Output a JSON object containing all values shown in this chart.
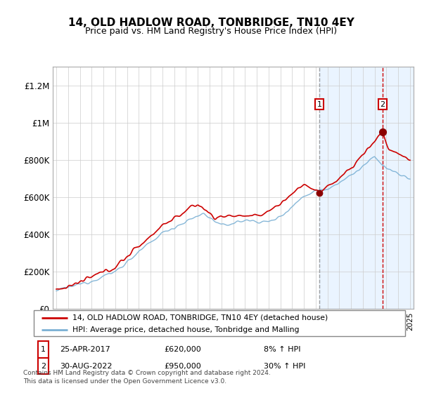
{
  "title": "14, OLD HADLOW ROAD, TONBRIDGE, TN10 4EY",
  "subtitle": "Price paid vs. HM Land Registry's House Price Index (HPI)",
  "legend_line1": "14, OLD HADLOW ROAD, TONBRIDGE, TN10 4EY (detached house)",
  "legend_line2": "HPI: Average price, detached house, Tonbridge and Malling",
  "annotation1_date": "25-APR-2017",
  "annotation1_price": 620000,
  "annotation1_text": "8% ↑ HPI",
  "annotation1_year": 2017.32,
  "annotation2_date": "30-AUG-2022",
  "annotation2_price": 950000,
  "annotation2_text": "30% ↑ HPI",
  "annotation2_year": 2022.67,
  "footer": "Contains HM Land Registry data © Crown copyright and database right 2024.\nThis data is licensed under the Open Government Licence v3.0.",
  "red_color": "#cc0000",
  "blue_color": "#7ab0d4",
  "shading_color": "#ddeeff",
  "ylim": [
    0,
    1300000
  ],
  "yticks": [
    0,
    200000,
    400000,
    600000,
    800000,
    1000000,
    1200000
  ],
  "ytick_labels": [
    "£0",
    "£200K",
    "£400K",
    "£600K",
    "£800K",
    "£1M",
    "£1.2M"
  ],
  "xstart": 1995,
  "xend": 2025
}
